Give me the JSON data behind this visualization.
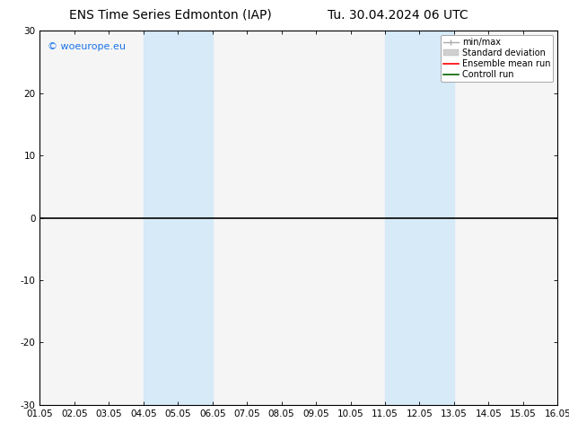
{
  "title_left": "ENS Time Series Edmonton (IAP)",
  "title_right": "Tu. 30.04.2024 06 UTC",
  "xlabel_ticks": [
    "01.05",
    "02.05",
    "03.05",
    "04.05",
    "05.05",
    "06.05",
    "07.05",
    "08.05",
    "09.05",
    "10.05",
    "11.05",
    "12.05",
    "13.05",
    "14.05",
    "15.05",
    "16.05"
  ],
  "ylim": [
    -30,
    30
  ],
  "yticks": [
    -30,
    -20,
    -10,
    0,
    10,
    20,
    30
  ],
  "xlim": [
    0,
    15
  ],
  "shaded_regions": [
    {
      "xmin": 3.0,
      "xmax": 5.0,
      "color": "#d6eaf8"
    },
    {
      "xmin": 10.0,
      "xmax": 12.0,
      "color": "#d6eaf8"
    }
  ],
  "hline_y": 0,
  "hline_color": "#000000",
  "watermark": "© woeurope.eu",
  "watermark_color": "#1a73e8",
  "legend_items": [
    {
      "label": "min/max",
      "color": "#aaaaaa",
      "lw": 1.0
    },
    {
      "label": "Standard deviation",
      "color": "#cccccc",
      "lw": 5
    },
    {
      "label": "Ensemble mean run",
      "color": "#ff0000",
      "lw": 1.2
    },
    {
      "label": "Controll run",
      "color": "#006400",
      "lw": 1.2
    }
  ],
  "bg_color": "#ffffff",
  "plot_bg_color": "#f5f5f5",
  "border_color": "#000000",
  "title_fontsize": 10,
  "tick_fontsize": 7.5,
  "watermark_fontsize": 8
}
